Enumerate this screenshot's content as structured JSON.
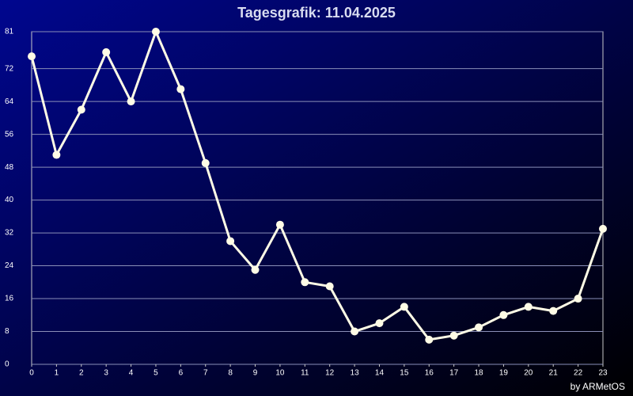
{
  "chart_data": {
    "type": "line",
    "title": "Tagesgrafik: 11.04.2025",
    "credit": "by ARMetOS",
    "x": [
      0,
      1,
      2,
      3,
      4,
      5,
      6,
      7,
      8,
      9,
      10,
      11,
      12,
      13,
      14,
      15,
      16,
      17,
      18,
      19,
      20,
      21,
      22,
      23
    ],
    "series": [
      {
        "color": "#fffce6",
        "values": [
          75,
          51,
          62,
          76,
          64,
          81,
          67,
          49,
          30,
          23,
          34,
          20,
          19,
          8,
          10,
          14,
          6,
          7,
          9,
          12,
          14,
          13,
          16,
          33
        ]
      }
    ],
    "xlim": [
      0,
      23
    ],
    "xticks": [
      0,
      1,
      2,
      3,
      4,
      5,
      6,
      7,
      8,
      9,
      10,
      11,
      12,
      13,
      14,
      15,
      16,
      17,
      18,
      19,
      20,
      21,
      22,
      23
    ],
    "ylim": [
      0,
      81
    ],
    "yticks": [
      0,
      8,
      16,
      24,
      32,
      40,
      48,
      56,
      64,
      72,
      81
    ],
    "grid": true
  }
}
